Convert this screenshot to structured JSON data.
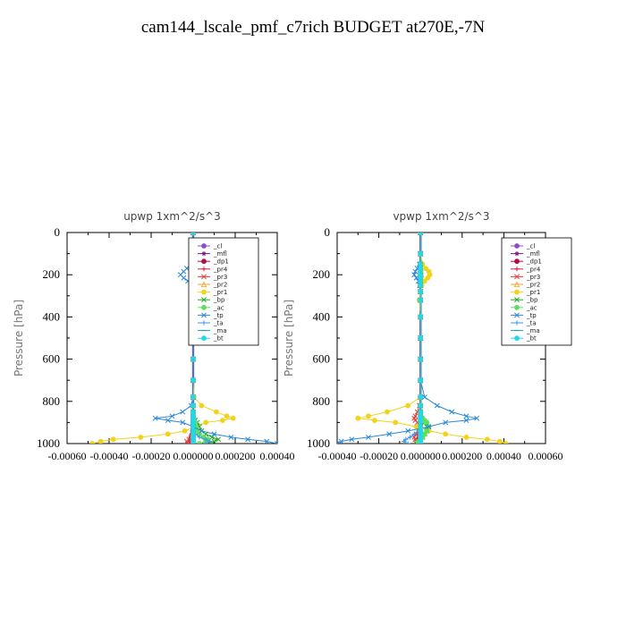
{
  "title": "cam144_lscale_pmf_c7rich  BUDGET at270E,-7N",
  "legend_labels": [
    "_cl",
    "_mfl",
    "_dp1",
    "_pr4",
    "_pr3",
    "_pr2",
    "_pr1",
    "_bp",
    "_ac",
    "_tp",
    "_ta",
    "_ma",
    "_bt"
  ],
  "colors": {
    "_cl": "#8a4fc7",
    "_mfl": "#7a1a7a",
    "_dp1": "#b00f4a",
    "_pr4": "#d6203a",
    "_pr3": "#f03a3a",
    "_pr2": "#f6a11a",
    "_pr1": "#f2d21a",
    "_bp": "#22a822",
    "_ac": "#5ee05e",
    "_tp": "#2a86d8",
    "_ta": "#3a96e8",
    "_ma": "#1aa0a0",
    "_bt": "#22d8e8"
  },
  "chart_data": [
    {
      "type": "line",
      "title": "upwp  1xm^2/s^3",
      "ylabel": "Pressure [hPa]",
      "xlim": [
        -0.0006,
        0.0004
      ],
      "ylim": [
        1000,
        0
      ],
      "xticks": [
        "-0.00060",
        "-0.00040",
        "-0.00020",
        "0.000000",
        "0.000200",
        "0.00040"
      ],
      "yticks": [
        "0",
        "200",
        "400",
        "600",
        "800",
        "1000"
      ],
      "legend_position": "top-right",
      "y": [
        0,
        100,
        150,
        170,
        185,
        200,
        215,
        230,
        250,
        280,
        320,
        400,
        500,
        600,
        700,
        780,
        820,
        850,
        870,
        880,
        890,
        900,
        920,
        940,
        955,
        970,
        980,
        990,
        1000
      ],
      "series": [
        {
          "name": "_cl",
          "values": [
            0,
            0,
            0,
            0,
            0,
            0,
            0,
            0,
            0,
            0,
            0,
            0,
            0,
            0,
            0,
            0,
            0,
            0,
            0,
            0,
            0,
            0,
            0,
            0,
            0,
            0,
            0,
            0,
            0
          ]
        },
        {
          "name": "_mfl",
          "values": [
            0,
            0,
            0,
            0,
            0,
            0,
            0,
            0,
            0,
            0,
            0,
            0,
            0,
            0,
            0,
            0,
            0,
            0,
            0,
            0,
            0,
            0,
            0,
            0,
            0,
            0,
            0,
            0,
            0
          ]
        },
        {
          "name": "_dp1",
          "values": [
            0,
            0,
            0,
            0,
            0,
            0,
            0,
            0,
            0,
            0,
            0,
            0,
            0,
            0,
            0,
            0,
            0,
            0,
            0,
            0,
            0,
            0,
            0,
            -2e-06,
            -4e-06,
            -8e-06,
            -1e-05,
            -1e-05,
            -6e-06
          ]
        },
        {
          "name": "_pr4",
          "values": [
            0,
            0,
            0,
            0,
            0,
            0,
            0,
            0,
            0,
            0,
            0,
            0,
            0,
            0,
            0,
            0,
            0,
            0,
            0,
            0,
            0,
            0,
            0,
            -3e-06,
            -6e-06,
            -1.2e-05,
            -1.6e-05,
            -1.8e-05,
            -1e-05
          ]
        },
        {
          "name": "_pr3",
          "values": [
            0,
            0,
            0,
            0,
            0,
            0,
            0,
            0,
            0,
            0,
            0,
            0,
            0,
            0,
            0,
            0,
            0,
            0,
            0,
            0,
            4e-06,
            6e-06,
            5e-06,
            2e-06,
            0,
            -1e-05,
            -2e-05,
            -3e-05,
            -2.5e-05
          ]
        },
        {
          "name": "_pr2",
          "values": [
            0,
            0,
            2e-06,
            4e-06,
            6e-06,
            8e-06,
            6e-06,
            4e-06,
            2e-06,
            0,
            0,
            0,
            0,
            0,
            0,
            0,
            0,
            0,
            0,
            0,
            0,
            0,
            0,
            0,
            0,
            0,
            0,
            0,
            0
          ]
        },
        {
          "name": "_pr1",
          "values": [
            0,
            0,
            1e-05,
            3e-05,
            5e-05,
            6e-05,
            5e-05,
            3e-05,
            1.2e-05,
            4e-06,
            0,
            0,
            0,
            0,
            0,
            4e-06,
            4e-05,
            0.00011,
            0.00016,
            0.00019,
            0.00014,
            6e-05,
            1e-05,
            -4e-05,
            -0.00012,
            -0.00025,
            -0.00038,
            -0.00044,
            -0.00048
          ]
        },
        {
          "name": "_bp",
          "values": [
            0,
            0,
            0,
            0,
            0,
            0,
            0,
            0,
            0,
            0,
            0,
            0,
            0,
            0,
            0,
            0,
            0,
            0,
            0,
            0,
            1e-05,
            2e-05,
            3e-05,
            4e-05,
            6e-05,
            9e-05,
            0.00012,
            0.0001,
            6e-05
          ]
        },
        {
          "name": "_ac",
          "values": [
            0,
            0,
            0,
            0,
            0,
            0,
            0,
            0,
            0,
            0,
            0,
            0,
            0,
            0,
            0,
            0,
            0,
            0,
            0,
            0,
            5e-06,
            1e-05,
            1.5e-05,
            2e-05,
            3e-05,
            5e-05,
            7e-05,
            6e-05,
            3e-05
          ]
        },
        {
          "name": "_tp",
          "values": [
            0,
            0,
            -1e-05,
            -3e-05,
            -4.5e-05,
            -6e-05,
            -4.5e-05,
            -2.5e-05,
            -8e-06,
            -2e-06,
            0,
            0,
            0,
            0,
            0,
            0,
            -1e-05,
            -5e-05,
            -0.0001,
            -0.00018,
            -0.00012,
            -5e-05,
            0,
            4e-05,
            0.0001,
            0.00018,
            0.00026,
            0.00035,
            0.0004
          ]
        },
        {
          "name": "_ta",
          "values": [
            0,
            0,
            0,
            0,
            0,
            0,
            0,
            0,
            0,
            0,
            0,
            0,
            0,
            0,
            0,
            0,
            0,
            0,
            0,
            0,
            0,
            0,
            0,
            0,
            1e-05,
            3e-05,
            6e-05,
            8e-05,
            6e-05
          ]
        },
        {
          "name": "_ma",
          "values": [
            0,
            0,
            0,
            0,
            0,
            0,
            0,
            0,
            0,
            0,
            0,
            0,
            0,
            0,
            0,
            0,
            0,
            0,
            0,
            0,
            0,
            0,
            0,
            0,
            0,
            0,
            0,
            0,
            0
          ]
        },
        {
          "name": "_bt",
          "values": [
            0,
            0,
            0,
            0,
            0,
            0,
            0,
            0,
            0,
            0,
            0,
            0,
            0,
            0,
            0,
            0,
            0,
            0,
            0,
            0,
            0,
            0,
            0,
            0,
            0,
            0,
            0,
            0,
            0
          ]
        }
      ]
    },
    {
      "type": "line",
      "title": "vpwp  1xm^2/s^3",
      "ylabel": "Pressure [hPa]",
      "xlim": [
        -0.0004,
        0.0006
      ],
      "ylim": [
        1000,
        0
      ],
      "xticks": [
        "-0.00040",
        "-0.00020",
        "0.000000",
        "0.000200",
        "0.00040",
        "0.00060"
      ],
      "yticks": [
        "0",
        "200",
        "400",
        "600",
        "800",
        "1000"
      ],
      "legend_position": "top-right",
      "y": [
        0,
        100,
        150,
        170,
        185,
        200,
        215,
        230,
        250,
        280,
        320,
        400,
        500,
        600,
        700,
        780,
        820,
        850,
        870,
        880,
        890,
        900,
        920,
        940,
        955,
        970,
        980,
        990,
        1000
      ],
      "series": [
        {
          "name": "_cl",
          "values": [
            0,
            0,
            0,
            0,
            0,
            0,
            0,
            0,
            0,
            0,
            0,
            0,
            0,
            0,
            0,
            0,
            0,
            0,
            0,
            0,
            0,
            0,
            0,
            0,
            0,
            0,
            0,
            0,
            0
          ]
        },
        {
          "name": "_mfl",
          "values": [
            0,
            0,
            0,
            0,
            0,
            0,
            0,
            0,
            0,
            0,
            0,
            0,
            0,
            0,
            0,
            0,
            0,
            0,
            0,
            0,
            0,
            0,
            0,
            0,
            0,
            0,
            0,
            0,
            0
          ]
        },
        {
          "name": "_dp1",
          "values": [
            0,
            0,
            0,
            0,
            0,
            0,
            0,
            0,
            0,
            0,
            0,
            0,
            0,
            0,
            0,
            0,
            0,
            0,
            0,
            0,
            0,
            0,
            0,
            0,
            -3e-06,
            -6e-06,
            -8e-06,
            -8e-06,
            -4e-06
          ]
        },
        {
          "name": "_pr4",
          "values": [
            0,
            0,
            0,
            0,
            0,
            0,
            0,
            0,
            0,
            0,
            0,
            0,
            0,
            0,
            0,
            0,
            0,
            0,
            0,
            0,
            0,
            0,
            0,
            0,
            -4e-06,
            -8e-06,
            -1.2e-05,
            -1e-05,
            -6e-06
          ]
        },
        {
          "name": "_pr3",
          "values": [
            0,
            0,
            0,
            0,
            0,
            0,
            0,
            0,
            0,
            0,
            0,
            0,
            0,
            0,
            0,
            0,
            -5e-06,
            -1.5e-05,
            -2.5e-05,
            -3e-05,
            -2.5e-05,
            -1.5e-05,
            -5e-06,
            -1e-05,
            -2e-05,
            -3e-05,
            -2.5e-05,
            -2e-05,
            -1e-05
          ]
        },
        {
          "name": "_pr2",
          "values": [
            0,
            0,
            0,
            2e-06,
            4e-06,
            5e-06,
            4e-06,
            2e-06,
            0,
            0,
            0,
            0,
            0,
            0,
            0,
            0,
            0,
            0,
            0,
            0,
            0,
            0,
            0,
            0,
            0,
            0,
            0,
            0,
            0
          ]
        },
        {
          "name": "_pr1",
          "values": [
            0,
            0,
            1e-05,
            2.5e-05,
            4e-05,
            4.5e-05,
            3.5e-05,
            2e-05,
            6e-06,
            -2e-06,
            -6e-06,
            0,
            0,
            0,
            0,
            0,
            -6e-05,
            -0.00016,
            -0.00025,
            -0.0003,
            -0.00022,
            -0.00012,
            -2e-05,
            4e-05,
            0.00012,
            0.00022,
            0.00032,
            0.00038,
            0.00041
          ]
        },
        {
          "name": "_bp",
          "values": [
            0,
            0,
            0,
            0,
            0,
            0,
            0,
            0,
            0,
            0,
            0,
            0,
            0,
            0,
            0,
            0,
            0,
            0,
            0,
            5e-06,
            1e-05,
            2e-05,
            3e-05,
            3e-05,
            2e-05,
            1e-05,
            0,
            -1e-05,
            -2e-05
          ]
        },
        {
          "name": "_ac",
          "values": [
            0,
            0,
            0,
            0,
            0,
            0,
            0,
            0,
            0,
            0,
            0,
            0,
            0,
            0,
            0,
            0,
            0,
            0,
            0,
            1e-05,
            2e-05,
            3e-05,
            4e-05,
            3e-05,
            2e-05,
            1e-05,
            0,
            -1e-05,
            -1e-05
          ]
        },
        {
          "name": "_tp",
          "values": [
            0,
            0,
            -5e-06,
            -1.5e-05,
            -2.5e-05,
            -3e-05,
            -2e-05,
            -1e-05,
            -4e-06,
            0,
            0,
            0,
            0,
            0,
            0,
            2e-05,
            8e-05,
            0.00015,
            0.00022,
            0.00027,
            0.00022,
            0.00012,
            4e-05,
            -6e-05,
            -0.00015,
            -0.00025,
            -0.00033,
            -0.00038,
            -0.0004
          ]
        },
        {
          "name": "_ta",
          "values": [
            0,
            0,
            0,
            0,
            0,
            0,
            0,
            0,
            0,
            0,
            0,
            0,
            0,
            0,
            0,
            0,
            0,
            0,
            0,
            0,
            0,
            0,
            0,
            -1e-05,
            -3e-05,
            -5e-05,
            -7e-05,
            -8e-05,
            -6e-05
          ]
        },
        {
          "name": "_ma",
          "values": [
            0,
            0,
            0,
            0,
            0,
            0,
            0,
            0,
            0,
            0,
            0,
            0,
            0,
            0,
            0,
            0,
            0,
            0,
            0,
            0,
            0,
            0,
            0,
            0,
            0,
            0,
            0,
            0,
            0
          ]
        },
        {
          "name": "_bt",
          "values": [
            0,
            0,
            0,
            0,
            0,
            0,
            0,
            0,
            0,
            0,
            0,
            0,
            0,
            0,
            0,
            0,
            0,
            0,
            0,
            0,
            0,
            0,
            0,
            0,
            0,
            0,
            0,
            0,
            0
          ]
        }
      ]
    }
  ]
}
